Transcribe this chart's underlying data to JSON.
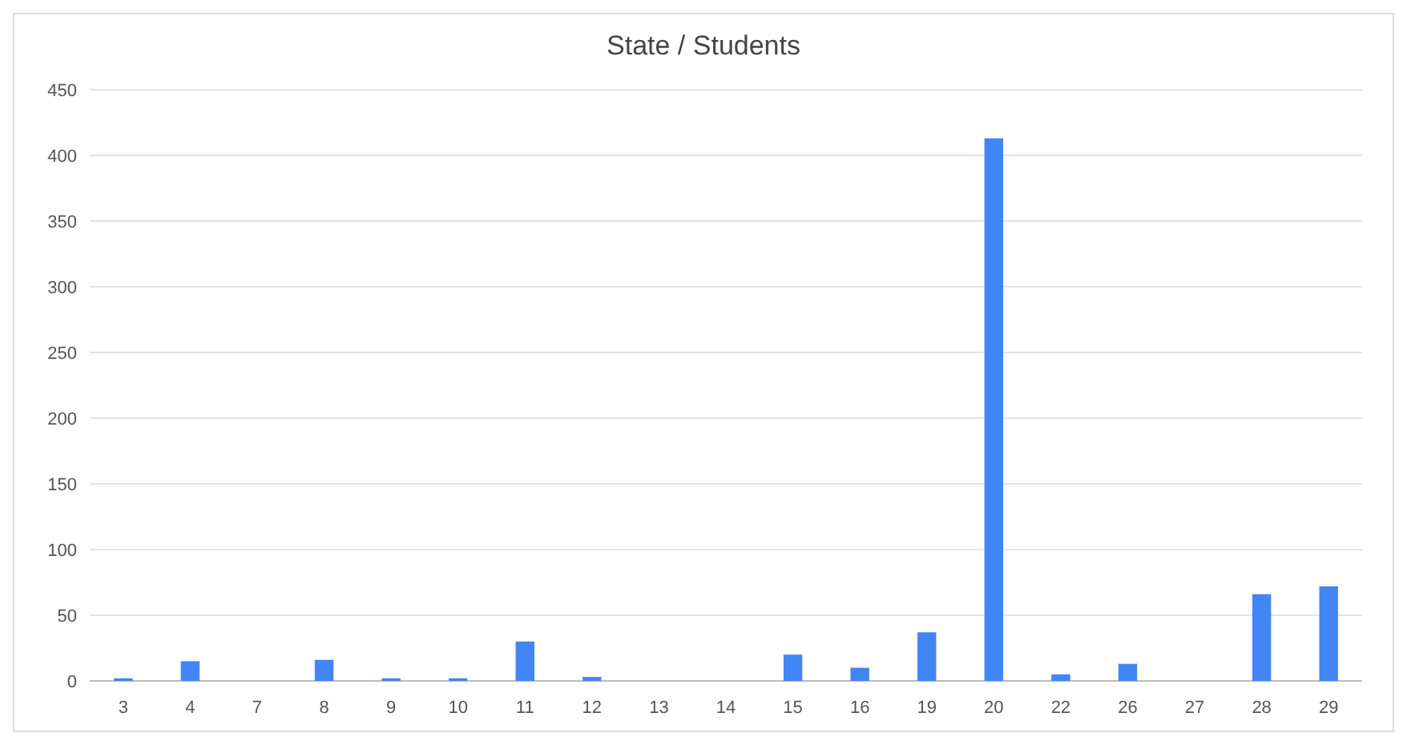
{
  "chart_data": {
    "type": "bar",
    "title": "State / Students",
    "categories": [
      "3",
      "4",
      "7",
      "8",
      "9",
      "10",
      "11",
      "12",
      "13",
      "14",
      "15",
      "16",
      "19",
      "20",
      "22",
      "26",
      "27",
      "28",
      "29"
    ],
    "values": [
      2,
      15,
      0,
      16,
      2,
      2,
      30,
      3,
      0,
      0,
      20,
      10,
      37,
      413,
      5,
      13,
      0,
      66,
      72
    ],
    "color": "#4285f4",
    "ylim": [
      0,
      450
    ],
    "yticks": [
      0,
      50,
      100,
      150,
      200,
      250,
      300,
      350,
      400,
      450
    ],
    "grid": "y"
  }
}
